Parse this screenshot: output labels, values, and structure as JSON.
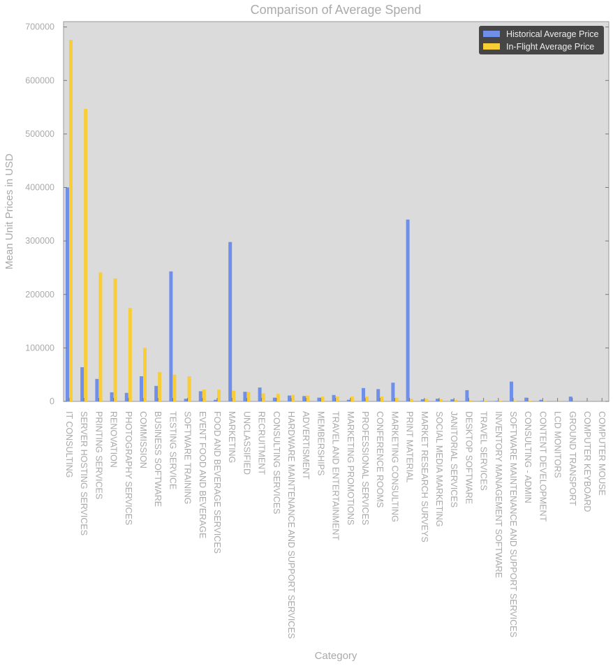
{
  "chart_data": {
    "type": "bar",
    "title": "Comparison of Average Spend",
    "xlabel": "Category",
    "ylabel": "Mean Unit Prices in USD",
    "ylim": [
      0,
      710000
    ],
    "yticks": [
      0,
      100000,
      200000,
      300000,
      400000,
      500000,
      600000,
      700000
    ],
    "grid": false,
    "legend_position": "top-right",
    "categories": [
      "IT CONSULTING",
      "SERVER HOSTING SERVICES",
      "PRINTING SERVICES",
      "RENOVATION",
      "PHOTOGRAPHY SERVICES",
      "COMMISSION",
      "BUSINESS SOFTWARE",
      "TESTING SERVICE",
      "SOFTWARE TRAINING",
      "EVENT FOOD AND BEVERAGE",
      "FOOD AND BEVERAGE SERVICES",
      "MARKETING",
      "UNCLASSIFIED",
      "RECRUITMENT",
      "CONSULTING SERVICES",
      "HARDWARE MAINTENANCE AND SUPPORT SERVICES",
      "ADVERTISMENT",
      "MEMBERSHIPS",
      "TRAVEL AND ENTERTAINMENT",
      "MARKETING PROMOTIONS",
      "PROFESSIONAL SERVICES",
      "CONFERENCE ROOMS",
      "MARKETING CONSULTING",
      "PRINT MATERIAL",
      "MARKET RESEARCH SURVEYS",
      "SOCIAL MEDIA MARKETING",
      "JANITORIAL SERVICES",
      "DESKTOP SOFTWARE",
      "TRAVEL SERVICES",
      "INVENTORY MANAGEMENT SOFTWARE",
      "SOFTWARE MAINTENANCE AND SUPPORT SERVICES",
      "CONSULTING - ADMIN",
      "CONTENT DEVELOPMENT",
      "LCD MONITORS",
      "GROUND TRANSPORT",
      "COMPUTER KEYBOARD",
      "COMPUTER MOUSE"
    ],
    "series": [
      {
        "name": "Historical Average Price",
        "color": "#6f8fe8",
        "values": [
          400000,
          64000,
          42000,
          17000,
          16000,
          47000,
          29000,
          243000,
          5000,
          19000,
          3000,
          298000,
          18000,
          26000,
          7000,
          11000,
          10000,
          7000,
          12000,
          3000,
          25000,
          23000,
          35000,
          340000,
          4000,
          5000,
          4000,
          21000,
          1000,
          1000,
          37000,
          7000,
          3000,
          0,
          9000,
          0,
          0
        ]
      },
      {
        "name": "In-Flight Average Price",
        "color": "#f8cd35",
        "values": [
          676000,
          547000,
          241000,
          230000,
          175000,
          100000,
          55000,
          50000,
          47000,
          22000,
          22000,
          20000,
          18000,
          15000,
          14000,
          12000,
          11000,
          9000,
          9000,
          9000,
          9000,
          9000,
          7000,
          5000,
          5000,
          4000,
          3000,
          2000,
          1000,
          1000,
          1000,
          1000,
          500,
          200,
          100,
          100,
          100
        ]
      }
    ]
  }
}
